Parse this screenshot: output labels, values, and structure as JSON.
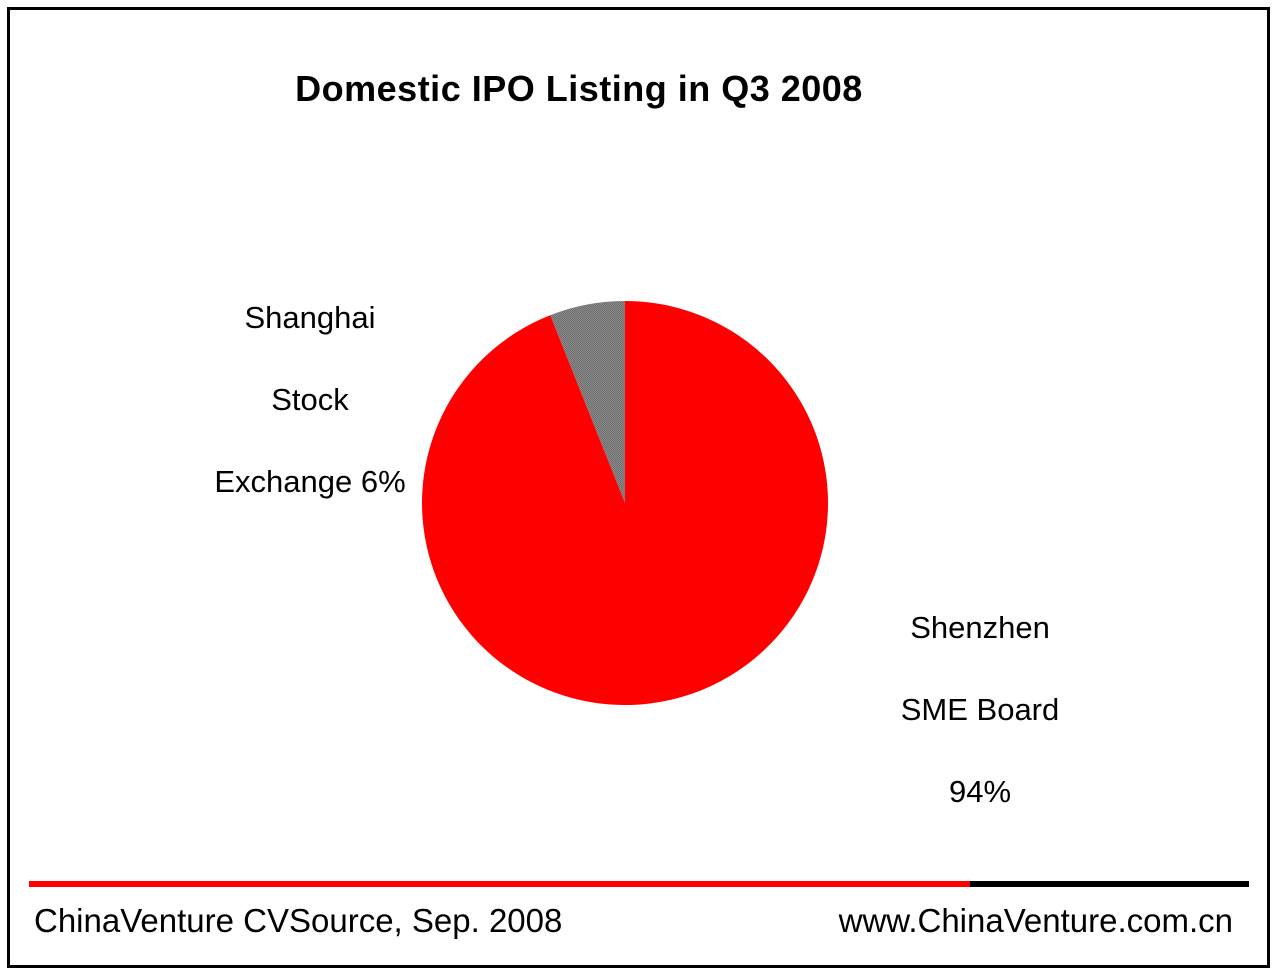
{
  "chart_data": {
    "type": "pie",
    "title": "Domestic IPO Listing in Q3 2008",
    "slices": [
      {
        "label_lines": [
          "Shanghai",
          "Stock",
          "Exchange 6%"
        ],
        "name": "Shanghai Stock Exchange",
        "value": 6,
        "color": "#808080"
      },
      {
        "label_lines": [
          "Shenzhen",
          "SME Board",
          "94%"
        ],
        "name": "Shenzhen SME Board",
        "value": 94,
        "color": "#ff0000"
      }
    ],
    "start_angle": "12 o'clock",
    "direction": "counter-clockwise for first slice"
  },
  "footer": {
    "source": "ChinaVenture CVSource,  Sep. 2008",
    "url": "www.ChinaVenture.com.cn"
  },
  "colors": {
    "accent_red": "#ff0000",
    "rule_black": "#000000",
    "slice_gray": "#808080"
  }
}
